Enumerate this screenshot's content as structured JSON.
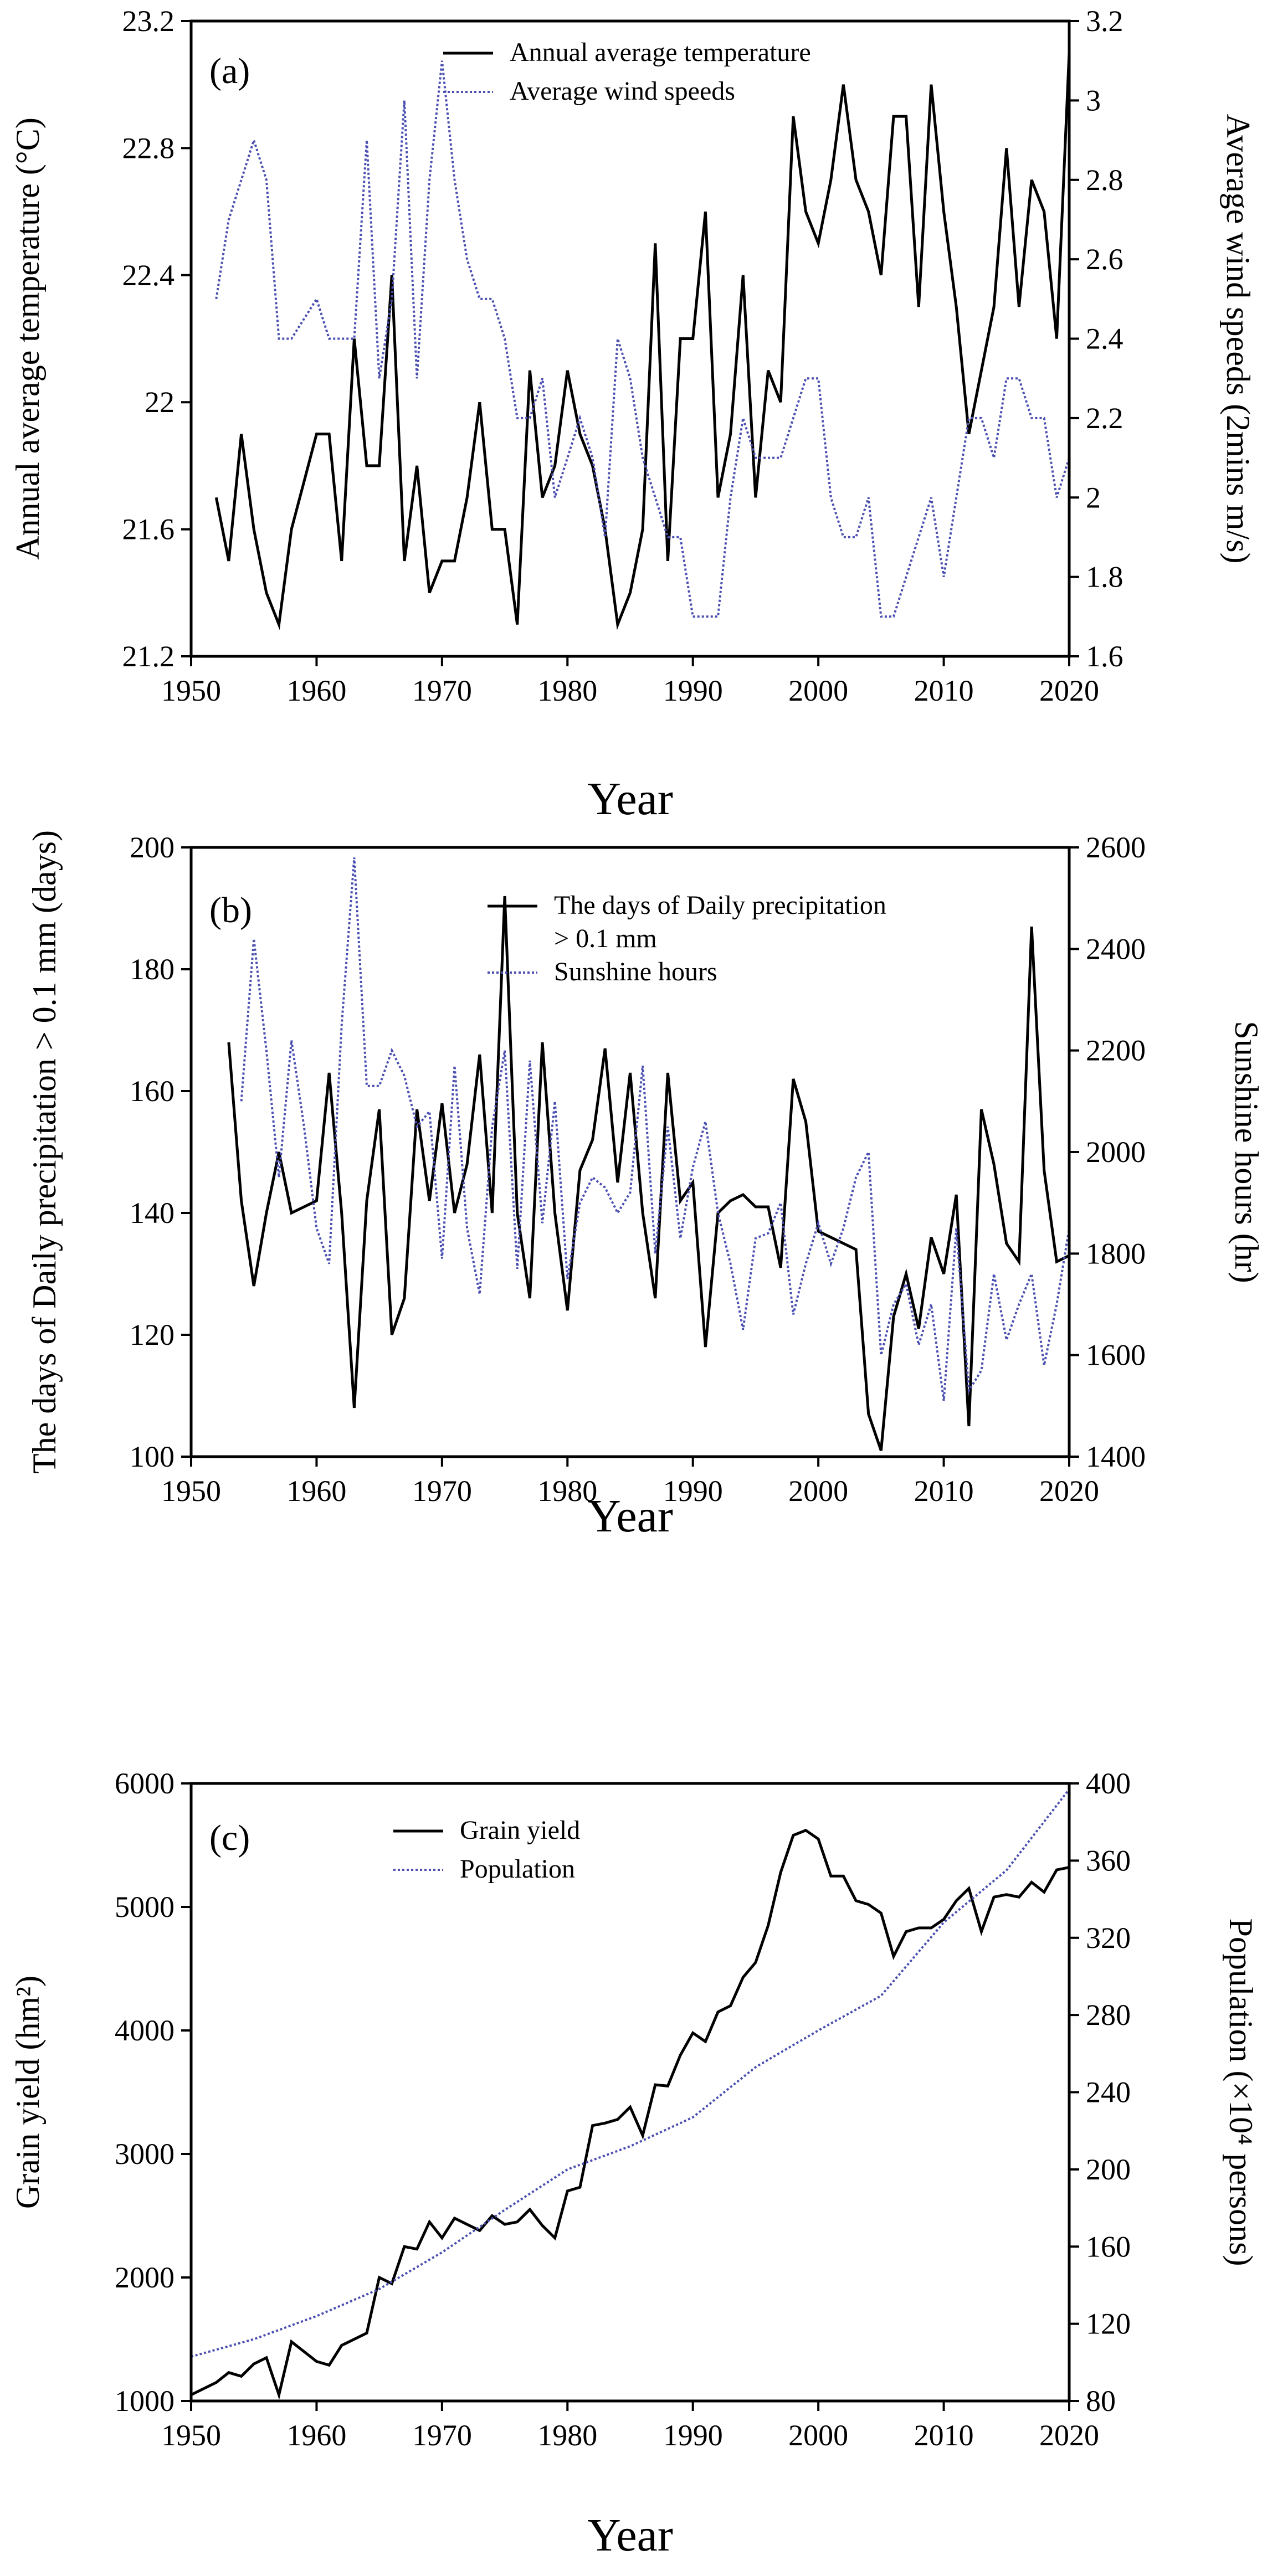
{
  "chart_data": [
    {
      "type": "line",
      "panel_label": "(a)",
      "xlabel": "Year",
      "xlim": [
        1950,
        2020
      ],
      "xticks": [
        "1950",
        "1960",
        "1970",
        "1980",
        "1990",
        "2000",
        "2010",
        "2020"
      ],
      "ylabel_left": "Annual average temperature (°C)",
      "ylim_left": [
        21.2,
        23.2
      ],
      "yticks_left": [
        "21.2",
        "21.6",
        "22",
        "22.4",
        "22.8",
        "23.2"
      ],
      "ylabel_right": "Average wind speeds (2mins m/s)",
      "ylim_right": [
        1.6,
        3.2
      ],
      "yticks_right": [
        "1.6",
        "1.8",
        "2",
        "2.2",
        "2.4",
        "2.6",
        "2.8",
        "3",
        "3.2"
      ],
      "legend_position": "top-center",
      "series": [
        {
          "name": "Annual average temperature",
          "axis": "left",
          "style": "solid",
          "color": "#000000",
          "x": [
            1952,
            1953,
            1954,
            1955,
            1956,
            1957,
            1958,
            1959,
            1960,
            1961,
            1962,
            1963,
            1964,
            1965,
            1966,
            1967,
            1968,
            1969,
            1970,
            1971,
            1972,
            1973,
            1974,
            1975,
            1976,
            1977,
            1978,
            1979,
            1980,
            1981,
            1982,
            1983,
            1984,
            1985,
            1986,
            1987,
            1988,
            1989,
            1990,
            1991,
            1992,
            1993,
            1994,
            1995,
            1996,
            1997,
            1998,
            1999,
            2000,
            2001,
            2002,
            2003,
            2004,
            2005,
            2006,
            2007,
            2008,
            2009,
            2010,
            2011,
            2012,
            2013,
            2014,
            2015,
            2016,
            2017,
            2018,
            2019,
            2020
          ],
          "y": [
            21.7,
            21.5,
            21.9,
            21.6,
            21.4,
            21.3,
            21.6,
            21.75,
            21.9,
            21.9,
            21.5,
            22.2,
            21.8,
            21.8,
            22.4,
            21.5,
            21.8,
            21.4,
            21.5,
            21.5,
            21.7,
            22.0,
            21.6,
            21.6,
            21.3,
            22.1,
            21.7,
            21.8,
            22.1,
            21.9,
            21.8,
            21.6,
            21.3,
            21.4,
            21.6,
            22.5,
            21.5,
            22.2,
            22.2,
            22.6,
            21.7,
            21.9,
            22.4,
            21.7,
            22.1,
            22.0,
            22.9,
            22.6,
            22.5,
            22.7,
            23.0,
            22.7,
            22.6,
            22.4,
            22.9,
            22.9,
            22.3,
            23.0,
            22.6,
            22.3,
            21.9,
            22.1,
            22.3,
            22.8,
            22.3,
            22.7,
            22.6,
            22.2,
            23.1
          ]
        },
        {
          "name": "Average wind speeds",
          "axis": "right",
          "style": "dotted",
          "color": "#4a4fb0",
          "x": [
            1952,
            1953,
            1954,
            1955,
            1956,
            1957,
            1958,
            1959,
            1960,
            1961,
            1962,
            1963,
            1964,
            1965,
            1966,
            1967,
            1968,
            1969,
            1970,
            1971,
            1972,
            1973,
            1974,
            1975,
            1976,
            1977,
            1978,
            1979,
            1980,
            1981,
            1982,
            1983,
            1984,
            1985,
            1986,
            1987,
            1988,
            1989,
            1990,
            1991,
            1992,
            1993,
            1994,
            1995,
            1996,
            1997,
            1998,
            1999,
            2000,
            2001,
            2002,
            2003,
            2004,
            2005,
            2006,
            2007,
            2008,
            2009,
            2010,
            2011,
            2012,
            2013,
            2014,
            2015,
            2016,
            2017,
            2018,
            2019,
            2020
          ],
          "y": [
            2.5,
            2.7,
            2.8,
            2.9,
            2.8,
            2.4,
            2.4,
            2.45,
            2.5,
            2.4,
            2.4,
            2.4,
            2.9,
            2.3,
            2.5,
            3.0,
            2.3,
            2.8,
            3.1,
            2.8,
            2.6,
            2.5,
            2.5,
            2.4,
            2.2,
            2.2,
            2.3,
            2.0,
            2.1,
            2.2,
            2.1,
            1.9,
            2.4,
            2.3,
            2.1,
            2.0,
            1.9,
            1.9,
            1.7,
            1.7,
            1.7,
            2.0,
            2.2,
            2.1,
            2.1,
            2.1,
            2.2,
            2.3,
            2.3,
            2.0,
            1.9,
            1.9,
            2.0,
            1.7,
            1.7,
            1.8,
            1.9,
            2.0,
            1.8,
            2.0,
            2.2,
            2.2,
            2.1,
            2.3,
            2.3,
            2.2,
            2.2,
            2.0,
            2.1
          ]
        }
      ]
    },
    {
      "type": "line",
      "panel_label": "(b)",
      "xlabel": "Year",
      "xlim": [
        1950,
        2020
      ],
      "xticks": [
        "1950",
        "1960",
        "1970",
        "1980",
        "1990",
        "2000",
        "2010",
        "2020"
      ],
      "ylabel_left": "The days of Daily precipitation > 0.1 mm (days)",
      "ylim_left": [
        100,
        200
      ],
      "yticks_left": [
        "100",
        "120",
        "140",
        "160",
        "180",
        "200"
      ],
      "ylabel_right": "Sunshine hours (hr)",
      "ylim_right": [
        1400,
        2600
      ],
      "yticks_right": [
        "1400",
        "1600",
        "1800",
        "2000",
        "2200",
        "2400",
        "2600"
      ],
      "legend_position": "top-center",
      "series": [
        {
          "name": "The days of Daily precipitation > 0.1 mm",
          "axis": "left",
          "style": "solid",
          "color": "#000000",
          "x": [
            1953,
            1954,
            1955,
            1956,
            1957,
            1958,
            1959,
            1960,
            1961,
            1962,
            1963,
            1964,
            1965,
            1966,
            1967,
            1968,
            1969,
            1970,
            1971,
            1972,
            1973,
            1974,
            1975,
            1976,
            1977,
            1978,
            1979,
            1980,
            1981,
            1982,
            1983,
            1984,
            1985,
            1986,
            1987,
            1988,
            1989,
            1990,
            1991,
            1992,
            1993,
            1994,
            1995,
            1996,
            1997,
            1998,
            1999,
            2000,
            2001,
            2002,
            2003,
            2004,
            2005,
            2006,
            2007,
            2008,
            2009,
            2010,
            2011,
            2012,
            2013,
            2014,
            2015,
            2016,
            2017,
            2018,
            2019,
            2020
          ],
          "y": [
            168,
            142,
            128,
            140,
            150,
            140,
            141,
            142,
            163,
            140,
            108,
            142,
            157,
            120,
            126,
            157,
            142,
            158,
            140,
            148,
            166,
            140,
            192,
            140,
            126,
            168,
            140,
            124,
            147,
            152,
            167,
            145,
            163,
            140,
            126,
            163,
            142,
            145,
            118,
            140,
            142,
            143,
            141,
            141,
            131,
            162,
            155,
            137,
            136,
            135,
            134,
            107,
            101,
            123,
            130,
            121,
            136,
            130,
            143,
            105,
            157,
            148,
            135,
            132,
            187,
            147,
            132,
            133
          ]
        },
        {
          "name": "Sunshine hours",
          "axis": "right",
          "style": "dotted",
          "color": "#4a4fb0",
          "x": [
            1954,
            1955,
            1956,
            1957,
            1958,
            1959,
            1960,
            1961,
            1962,
            1963,
            1964,
            1965,
            1966,
            1967,
            1968,
            1969,
            1970,
            1971,
            1972,
            1973,
            1974,
            1975,
            1976,
            1977,
            1978,
            1979,
            1980,
            1981,
            1982,
            1983,
            1984,
            1985,
            1986,
            1987,
            1988,
            1989,
            1990,
            1991,
            1992,
            1993,
            1994,
            1995,
            1996,
            1997,
            1998,
            1999,
            2000,
            2001,
            2002,
            2003,
            2004,
            2005,
            2006,
            2007,
            2008,
            2009,
            2010,
            2011,
            2012,
            2013,
            2014,
            2015,
            2016,
            2017,
            2018,
            2019,
            2020
          ],
          "y": [
            2100,
            2420,
            2200,
            1950,
            2220,
            2050,
            1850,
            1780,
            2250,
            2580,
            2130,
            2130,
            2200,
            2150,
            2050,
            2080,
            1790,
            2170,
            1850,
            1720,
            2050,
            2200,
            1770,
            2180,
            1860,
            2100,
            1750,
            1900,
            1950,
            1930,
            1880,
            1920,
            2170,
            1800,
            2050,
            1830,
            1970,
            2060,
            1880,
            1780,
            1650,
            1830,
            1840,
            1900,
            1680,
            1780,
            1860,
            1780,
            1850,
            1950,
            2000,
            1600,
            1700,
            1740,
            1620,
            1700,
            1510,
            1850,
            1530,
            1570,
            1760,
            1630,
            1700,
            1760,
            1580,
            1700,
            1850
          ]
        }
      ]
    },
    {
      "type": "line",
      "panel_label": "(c)",
      "xlabel": "Year",
      "xlim": [
        1950,
        2020
      ],
      "xticks": [
        "1950",
        "1960",
        "1970",
        "1980",
        "1990",
        "2000",
        "2010",
        "2020"
      ],
      "ylabel_left": "Grain yield (hm²)",
      "ylim_left": [
        1000,
        6000
      ],
      "yticks_left": [
        "1000",
        "2000",
        "3000",
        "4000",
        "5000",
        "6000"
      ],
      "ylabel_right": "Population (×10⁴ persons)",
      "ylim_right": [
        80,
        400
      ],
      "yticks_right": [
        "80",
        "120",
        "160",
        "200",
        "240",
        "280",
        "320",
        "360",
        "400"
      ],
      "legend_position": "top-center",
      "series": [
        {
          "name": "Grain yield",
          "axis": "left",
          "style": "solid",
          "color": "#000000",
          "x": [
            1950,
            1951,
            1952,
            1953,
            1954,
            1955,
            1956,
            1957,
            1958,
            1959,
            1960,
            1961,
            1962,
            1963,
            1964,
            1965,
            1966,
            1967,
            1968,
            1969,
            1970,
            1971,
            1972,
            1973,
            1974,
            1975,
            1976,
            1977,
            1978,
            1979,
            1980,
            1981,
            1982,
            1983,
            1984,
            1985,
            1986,
            1987,
            1988,
            1989,
            1990,
            1991,
            1992,
            1993,
            1994,
            1995,
            1996,
            1997,
            1998,
            1999,
            2000,
            2001,
            2002,
            2003,
            2004,
            2005,
            2006,
            2007,
            2008,
            2009,
            2010,
            2011,
            2012,
            2013,
            2014,
            2015,
            2016,
            2017,
            2018,
            2019,
            2020
          ],
          "y": [
            1050,
            1100,
            1150,
            1230,
            1200,
            1300,
            1350,
            1050,
            1480,
            1400,
            1320,
            1290,
            1450,
            1500,
            1550,
            2000,
            1950,
            2250,
            2230,
            2450,
            2320,
            2480,
            2430,
            2380,
            2500,
            2430,
            2450,
            2550,
            2420,
            2320,
            2700,
            2730,
            3230,
            3250,
            3280,
            3380,
            3150,
            3560,
            3550,
            3800,
            3980,
            3910,
            4150,
            4200,
            4430,
            4550,
            4850,
            5280,
            5580,
            5620,
            5550,
            5250,
            5250,
            5050,
            5020,
            4950,
            4600,
            4800,
            4830,
            4830,
            4900,
            5050,
            5150,
            4800,
            5080,
            5100,
            5080,
            5200,
            5120,
            5300,
            5320
          ]
        },
        {
          "name": "Population",
          "axis": "right",
          "style": "dotted",
          "color": "#4a4fb0",
          "x": [
            1950,
            1955,
            1960,
            1965,
            1970,
            1975,
            1980,
            1985,
            1990,
            1995,
            2000,
            2005,
            2010,
            2015,
            2020
          ],
          "y": [
            103,
            112,
            124,
            138,
            157,
            179,
            200,
            212,
            227,
            253,
            272,
            290,
            328,
            355,
            397
          ]
        }
      ]
    }
  ]
}
